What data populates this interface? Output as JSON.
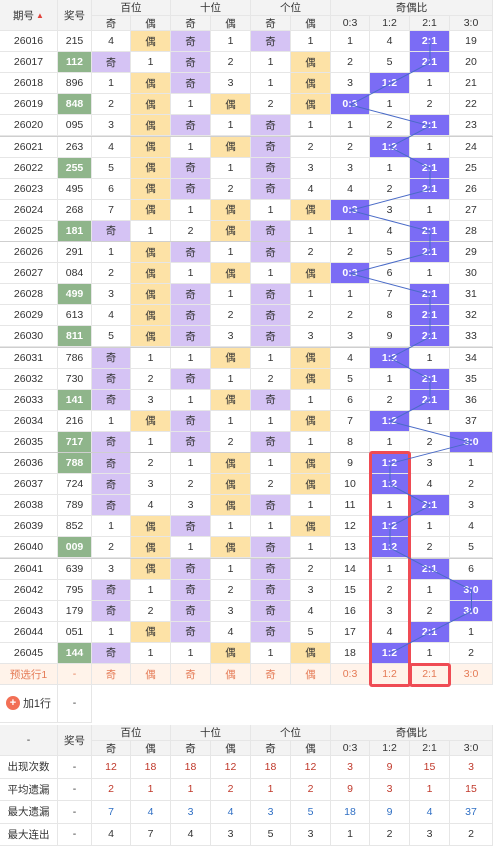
{
  "header": {
    "qihao": "期号",
    "jianghao": "奖号",
    "bai": "百位",
    "shi": "十位",
    "ge": "个位",
    "ratio": "奇偶比",
    "ji": "奇",
    "ou": "偶",
    "ratios": [
      "0:3",
      "1:2",
      "2:1",
      "3:0"
    ]
  },
  "rows": [
    {
      "q": "26016",
      "n": "215",
      "g": false,
      "b": [
        "4",
        "偶",
        0
      ],
      "s": [
        "奇",
        "1",
        1
      ],
      "c": [
        "奇",
        "1",
        1
      ],
      "r": [
        "1",
        "4",
        "2:1",
        "19"
      ],
      "k": 2
    },
    {
      "q": "26017",
      "n": "112",
      "g": true,
      "b": [
        "奇",
        "1",
        1
      ],
      "s": [
        "奇",
        "2",
        1
      ],
      "c": [
        "1",
        "偶",
        0
      ],
      "r": [
        "2",
        "5",
        "2:1",
        "20"
      ],
      "k": 2
    },
    {
      "q": "26018",
      "n": "896",
      "g": false,
      "b": [
        "1",
        "偶",
        0
      ],
      "s": [
        "奇",
        "3",
        1
      ],
      "c": [
        "1",
        "偶",
        0
      ],
      "r": [
        "3",
        "1:2",
        "1",
        "21"
      ],
      "k": 1
    },
    {
      "q": "26019",
      "n": "848",
      "g": true,
      "b": [
        "2",
        "偶",
        0
      ],
      "s": [
        "1",
        "偶",
        0
      ],
      "c": [
        "2",
        "偶",
        0
      ],
      "r": [
        "0:3",
        "1",
        "2",
        "22"
      ],
      "k": 0
    },
    {
      "q": "26020",
      "n": "095",
      "g": false,
      "b": [
        "3",
        "偶",
        0
      ],
      "s": [
        "奇",
        "1",
        1
      ],
      "c": [
        "奇",
        "1",
        1
      ],
      "r": [
        "1",
        "2",
        "2:1",
        "23"
      ],
      "k": 2
    },
    {
      "q": "26021",
      "n": "263",
      "g": false,
      "b": [
        "4",
        "偶",
        0
      ],
      "s": [
        "1",
        "偶",
        0
      ],
      "c": [
        "奇",
        "2",
        1
      ],
      "r": [
        "2",
        "1:2",
        "1",
        "24"
      ],
      "k": 1
    },
    {
      "q": "26022",
      "n": "255",
      "g": true,
      "b": [
        "5",
        "偶",
        0
      ],
      "s": [
        "奇",
        "1",
        1
      ],
      "c": [
        "奇",
        "3",
        1
      ],
      "r": [
        "3",
        "1",
        "2:1",
        "25"
      ],
      "k": 2
    },
    {
      "q": "26023",
      "n": "495",
      "g": false,
      "b": [
        "6",
        "偶",
        0
      ],
      "s": [
        "奇",
        "2",
        1
      ],
      "c": [
        "奇",
        "4",
        1
      ],
      "r": [
        "4",
        "2",
        "2:1",
        "26"
      ],
      "k": 2
    },
    {
      "q": "26024",
      "n": "268",
      "g": false,
      "b": [
        "7",
        "偶",
        0
      ],
      "s": [
        "1",
        "偶",
        0
      ],
      "c": [
        "1",
        "偶",
        0
      ],
      "r": [
        "0:3",
        "3",
        "1",
        "27"
      ],
      "k": 0
    },
    {
      "q": "26025",
      "n": "181",
      "g": true,
      "b": [
        "奇",
        "1",
        1
      ],
      "s": [
        "2",
        "偶",
        0
      ],
      "c": [
        "奇",
        "1",
        1
      ],
      "r": [
        "1",
        "4",
        "2:1",
        "28"
      ],
      "k": 2
    },
    {
      "q": "26026",
      "n": "291",
      "g": false,
      "b": [
        "1",
        "偶",
        0
      ],
      "s": [
        "奇",
        "1",
        1
      ],
      "c": [
        "奇",
        "2",
        1
      ],
      "r": [
        "2",
        "5",
        "2:1",
        "29"
      ],
      "k": 2
    },
    {
      "q": "26027",
      "n": "084",
      "g": false,
      "b": [
        "2",
        "偶",
        0
      ],
      "s": [
        "1",
        "偶",
        0
      ],
      "c": [
        "1",
        "偶",
        0
      ],
      "r": [
        "0:3",
        "6",
        "1",
        "30"
      ],
      "k": 0
    },
    {
      "q": "26028",
      "n": "499",
      "g": true,
      "b": [
        "3",
        "偶",
        0
      ],
      "s": [
        "奇",
        "1",
        1
      ],
      "c": [
        "奇",
        "1",
        1
      ],
      "r": [
        "1",
        "7",
        "2:1",
        "31"
      ],
      "k": 2
    },
    {
      "q": "26029",
      "n": "613",
      "g": false,
      "b": [
        "4",
        "偶",
        0
      ],
      "s": [
        "奇",
        "2",
        1
      ],
      "c": [
        "奇",
        "2",
        1
      ],
      "r": [
        "2",
        "8",
        "2:1",
        "32"
      ],
      "k": 2
    },
    {
      "q": "26030",
      "n": "811",
      "g": true,
      "b": [
        "5",
        "偶",
        0
      ],
      "s": [
        "奇",
        "3",
        1
      ],
      "c": [
        "奇",
        "3",
        1
      ],
      "r": [
        "3",
        "9",
        "2:1",
        "33"
      ],
      "k": 2
    },
    {
      "q": "26031",
      "n": "786",
      "g": false,
      "b": [
        "奇",
        "1",
        1
      ],
      "s": [
        "1",
        "偶",
        0
      ],
      "c": [
        "1",
        "偶",
        0
      ],
      "r": [
        "4",
        "1:2",
        "1",
        "34"
      ],
      "k": 1
    },
    {
      "q": "26032",
      "n": "730",
      "g": false,
      "b": [
        "奇",
        "2",
        1
      ],
      "s": [
        "奇",
        "1",
        1
      ],
      "c": [
        "2",
        "偶",
        0
      ],
      "r": [
        "5",
        "1",
        "2:1",
        "35"
      ],
      "k": 2
    },
    {
      "q": "26033",
      "n": "141",
      "g": true,
      "b": [
        "奇",
        "3",
        1
      ],
      "s": [
        "1",
        "偶",
        0
      ],
      "c": [
        "奇",
        "1",
        1
      ],
      "r": [
        "6",
        "2",
        "2:1",
        "36"
      ],
      "k": 2
    },
    {
      "q": "26034",
      "n": "216",
      "g": false,
      "b": [
        "1",
        "偶",
        0
      ],
      "s": [
        "奇",
        "1",
        1
      ],
      "c": [
        "1",
        "偶",
        0
      ],
      "r": [
        "7",
        "1:2",
        "1",
        "37"
      ],
      "k": 1
    },
    {
      "q": "26035",
      "n": "717",
      "g": true,
      "b": [
        "奇",
        "1",
        1
      ],
      "s": [
        "奇",
        "2",
        1
      ],
      "c": [
        "奇",
        "1",
        1
      ],
      "r": [
        "8",
        "1",
        "2",
        "3:0"
      ],
      "k": 3
    },
    {
      "q": "26036",
      "n": "788",
      "g": true,
      "b": [
        "奇",
        "2",
        1
      ],
      "s": [
        "1",
        "偶",
        0
      ],
      "c": [
        "1",
        "偶",
        0
      ],
      "r": [
        "9",
        "1:2",
        "3",
        "1"
      ],
      "k": 1
    },
    {
      "q": "26037",
      "n": "724",
      "g": false,
      "b": [
        "奇",
        "3",
        1
      ],
      "s": [
        "2",
        "偶",
        0
      ],
      "c": [
        "2",
        "偶",
        0
      ],
      "r": [
        "10",
        "1:2",
        "4",
        "2"
      ],
      "k": 1
    },
    {
      "q": "26038",
      "n": "789",
      "g": false,
      "b": [
        "奇",
        "4",
        1
      ],
      "s": [
        "3",
        "偶",
        0
      ],
      "c": [
        "奇",
        "1",
        1
      ],
      "r": [
        "11",
        "1",
        "2:1",
        "3"
      ],
      "k": 2
    },
    {
      "q": "26039",
      "n": "852",
      "g": false,
      "b": [
        "1",
        "偶",
        0
      ],
      "s": [
        "奇",
        "1",
        1
      ],
      "c": [
        "1",
        "偶",
        0
      ],
      "r": [
        "12",
        "1:2",
        "1",
        "4"
      ],
      "k": 1
    },
    {
      "q": "26040",
      "n": "009",
      "g": true,
      "b": [
        "2",
        "偶",
        0
      ],
      "s": [
        "1",
        "偶",
        0
      ],
      "c": [
        "奇",
        "1",
        1
      ],
      "r": [
        "13",
        "1:2",
        "2",
        "5"
      ],
      "k": 1
    },
    {
      "q": "26041",
      "n": "639",
      "g": false,
      "b": [
        "3",
        "偶",
        0
      ],
      "s": [
        "奇",
        "1",
        1
      ],
      "c": [
        "奇",
        "2",
        1
      ],
      "r": [
        "14",
        "1",
        "2:1",
        "6"
      ],
      "k": 2
    },
    {
      "q": "26042",
      "n": "795",
      "g": false,
      "b": [
        "奇",
        "1",
        1
      ],
      "s": [
        "奇",
        "2",
        1
      ],
      "c": [
        "奇",
        "3",
        1
      ],
      "r": [
        "15",
        "2",
        "1",
        "3:0"
      ],
      "k": 3
    },
    {
      "q": "26043",
      "n": "179",
      "g": false,
      "b": [
        "奇",
        "2",
        1
      ],
      "s": [
        "奇",
        "3",
        1
      ],
      "c": [
        "奇",
        "4",
        1
      ],
      "r": [
        "16",
        "3",
        "2",
        "3:0"
      ],
      "k": 3
    },
    {
      "q": "26044",
      "n": "051",
      "g": false,
      "b": [
        "1",
        "偶",
        0
      ],
      "s": [
        "奇",
        "4",
        1
      ],
      "c": [
        "奇",
        "5",
        1
      ],
      "r": [
        "17",
        "4",
        "2:1",
        "1"
      ],
      "k": 2
    },
    {
      "q": "26045",
      "n": "144",
      "g": true,
      "b": [
        "奇",
        "1",
        1
      ],
      "s": [
        "1",
        "偶",
        0
      ],
      "c": [
        "1",
        "偶",
        0
      ],
      "r": [
        "18",
        "1:2",
        "1",
        "2"
      ],
      "k": 1
    }
  ],
  "preselect": {
    "label": "预选行1",
    "jianghao": "-",
    "cells": [
      "奇",
      "偶",
      "奇",
      "偶",
      "奇",
      "偶",
      "0:3",
      "1:2",
      "2:1",
      "3:0"
    ]
  },
  "addrow": {
    "label": "加1行",
    "dash": "-"
  },
  "footer_header": {
    "dash": "-",
    "jianghao": "奖号"
  },
  "stats": [
    {
      "label": "出现次数",
      "dash": "-",
      "cls": "stat-red",
      "values": [
        "12",
        "18",
        "18",
        "12",
        "18",
        "12",
        "3",
        "9",
        "15",
        "3"
      ]
    },
    {
      "label": "平均遗漏",
      "dash": "-",
      "cls": "stat-red",
      "values": [
        "2",
        "1",
        "1",
        "2",
        "1",
        "2",
        "9",
        "3",
        "1",
        "15"
      ]
    },
    {
      "label": "最大遗漏",
      "dash": "-",
      "cls": "stat-blue",
      "values": [
        "7",
        "4",
        "3",
        "4",
        "3",
        "5",
        "18",
        "9",
        "4",
        "37"
      ]
    },
    {
      "label": "最大连出",
      "dash": "-",
      "cls": "stat-dark",
      "values": [
        "4",
        "7",
        "4",
        "3",
        "5",
        "3",
        "1",
        "2",
        "3",
        "2"
      ]
    }
  ]
}
